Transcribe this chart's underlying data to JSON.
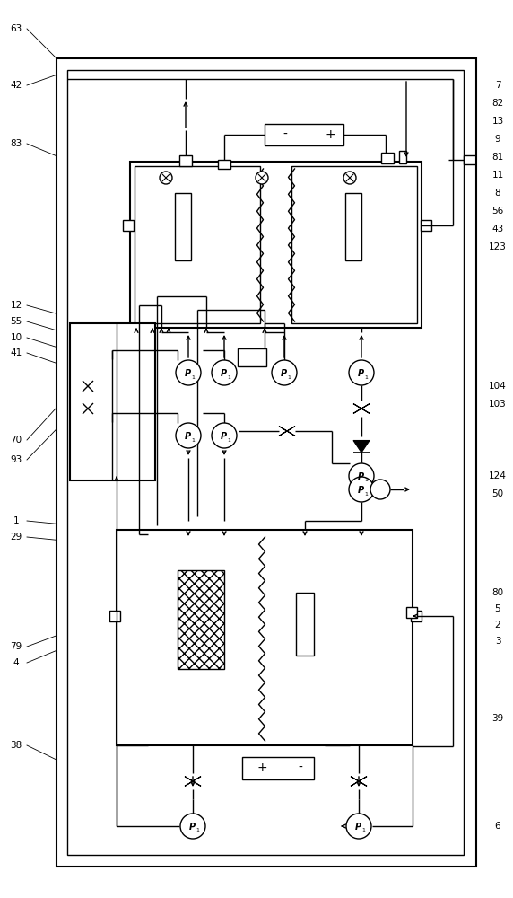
{
  "bg": "#ffffff",
  "lc": "#000000",
  "fig_w": 5.72,
  "fig_h": 10.0,
  "dpi": 100,
  "labels_left": [
    [
      "63",
      18,
      32
    ],
    [
      "42",
      18,
      95
    ],
    [
      "83",
      18,
      160
    ],
    [
      "12",
      18,
      340
    ],
    [
      "55",
      18,
      358
    ],
    [
      "10",
      18,
      376
    ],
    [
      "41",
      18,
      393
    ],
    [
      "70",
      18,
      490
    ],
    [
      "93",
      18,
      512
    ],
    [
      "1",
      18,
      580
    ],
    [
      "29",
      18,
      598
    ],
    [
      "79",
      18,
      720
    ],
    [
      "4",
      18,
      738
    ],
    [
      "38",
      18,
      830
    ]
  ],
  "labels_right": [
    [
      "7",
      555,
      95
    ],
    [
      "82",
      555,
      115
    ],
    [
      "13",
      555,
      135
    ],
    [
      "9",
      555,
      155
    ],
    [
      "81",
      555,
      175
    ],
    [
      "11",
      555,
      195
    ],
    [
      "8",
      555,
      215
    ],
    [
      "56",
      555,
      235
    ],
    [
      "43",
      555,
      255
    ],
    [
      "123",
      555,
      275
    ],
    [
      "104",
      555,
      430
    ],
    [
      "103",
      555,
      450
    ],
    [
      "124",
      555,
      530
    ],
    [
      "50",
      555,
      550
    ],
    [
      "80",
      555,
      660
    ],
    [
      "5",
      555,
      678
    ],
    [
      "2",
      555,
      696
    ],
    [
      "3",
      555,
      714
    ],
    [
      "39",
      555,
      800
    ],
    [
      "6",
      555,
      920
    ]
  ]
}
